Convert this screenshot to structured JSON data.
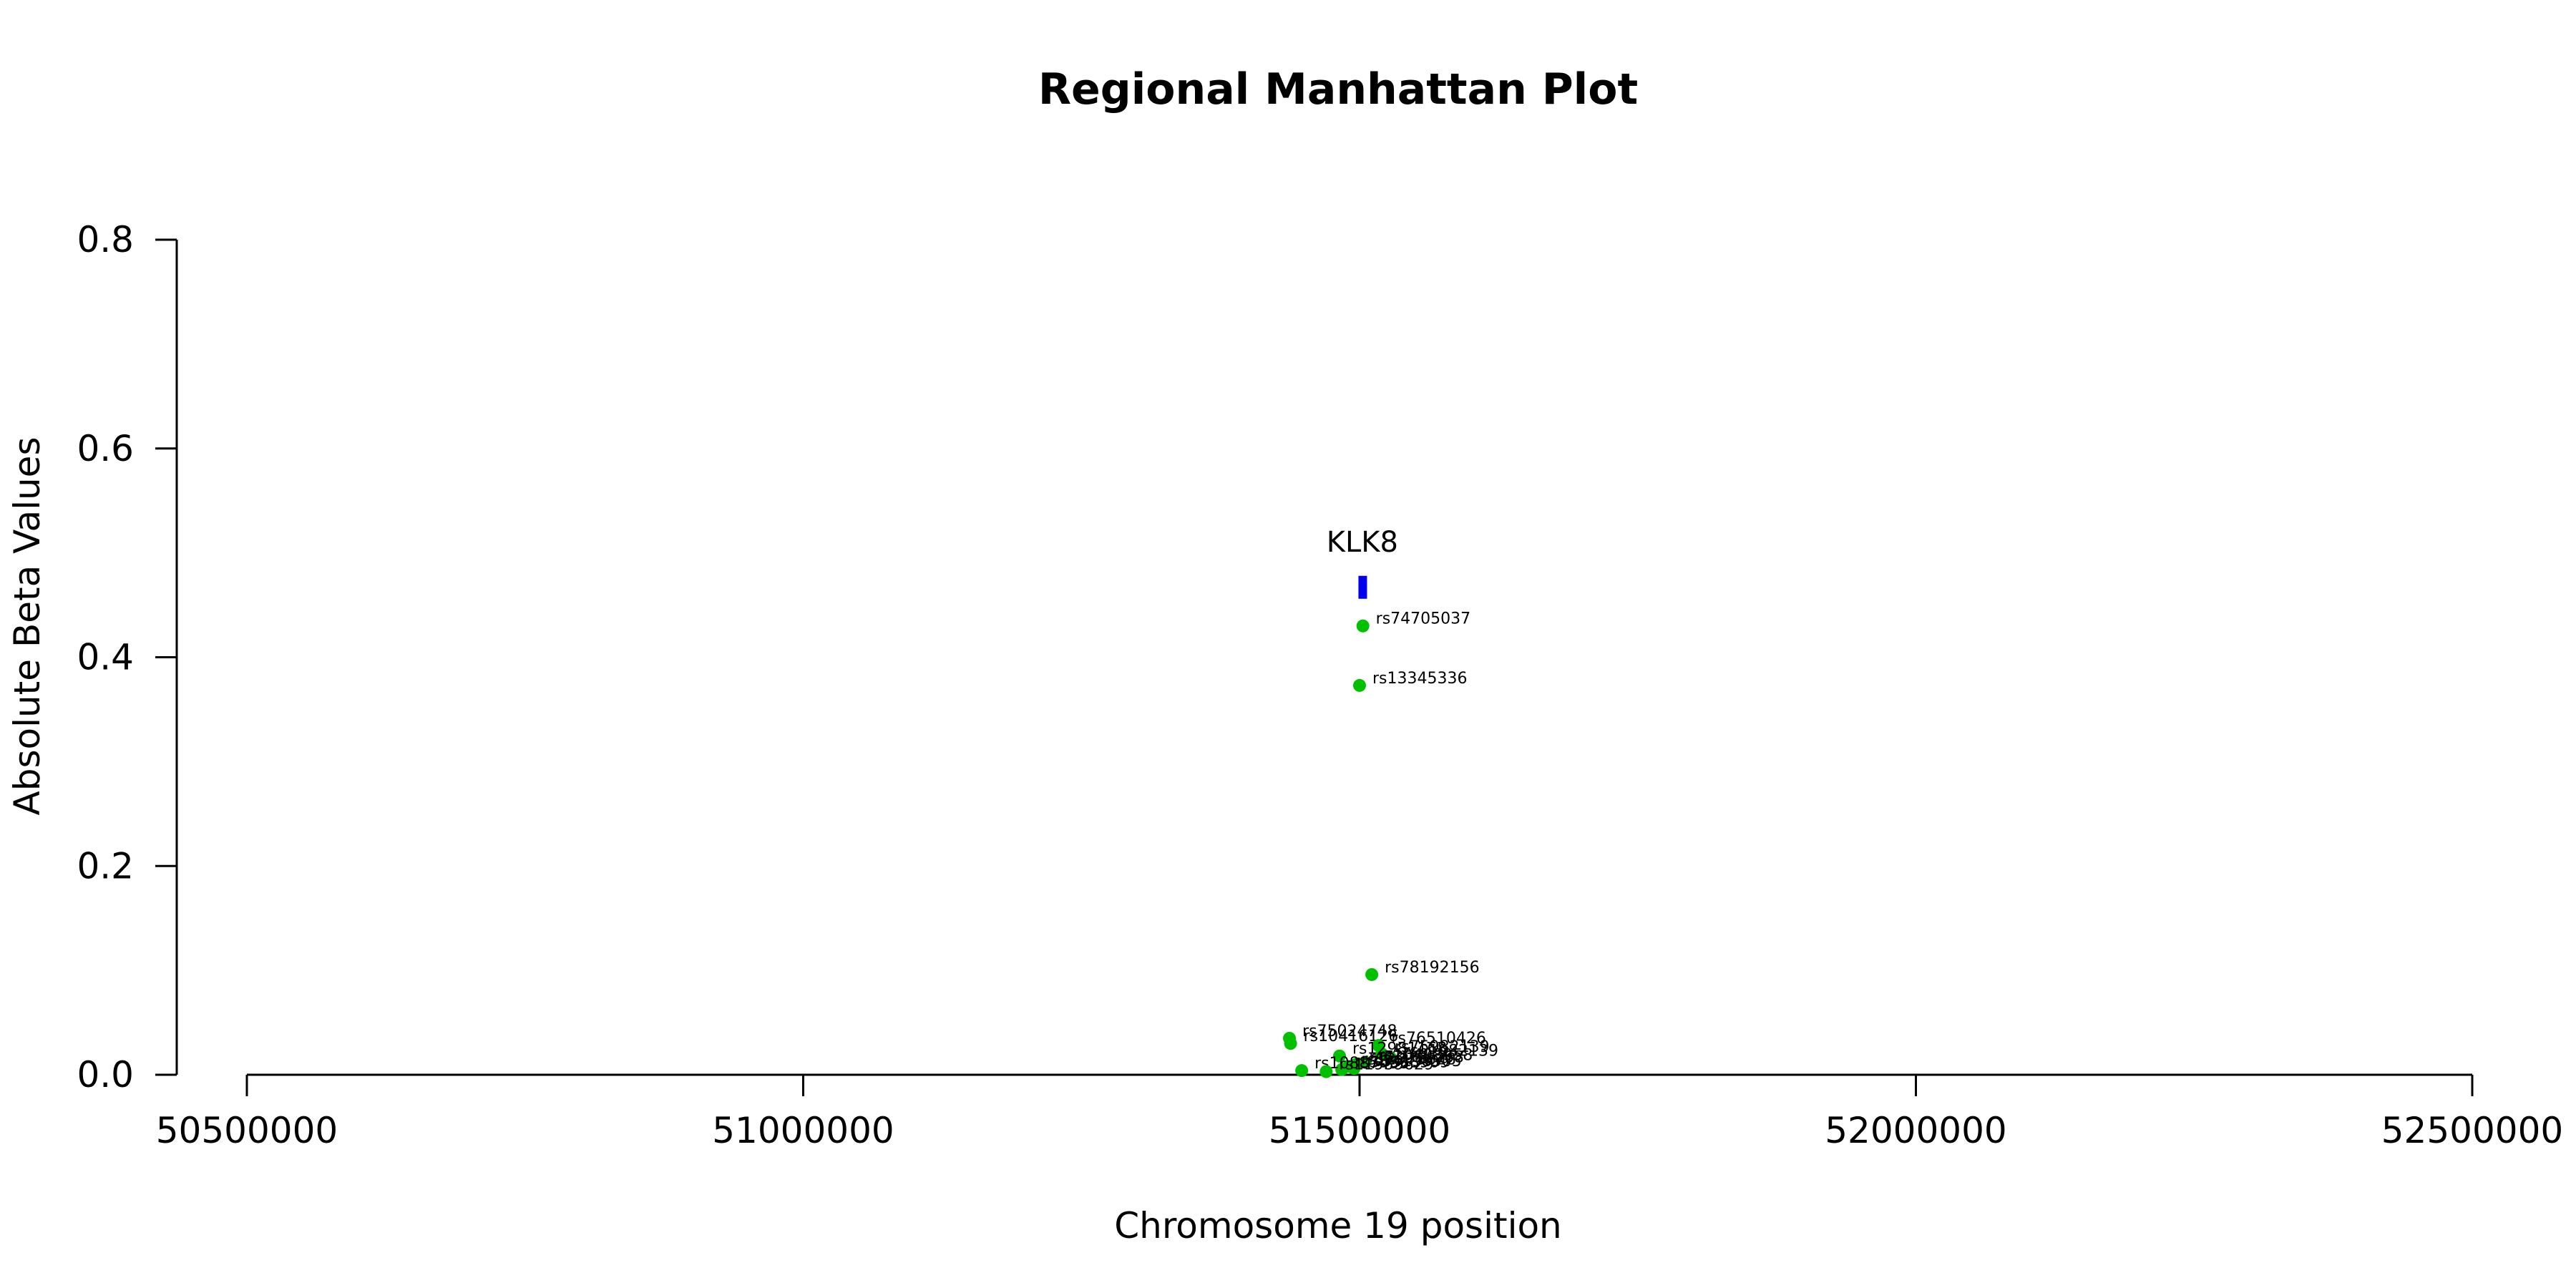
{
  "chart_data": {
    "type": "scatter",
    "title": "Regional Manhattan Plot",
    "xlabel": "Chromosome 19 position",
    "ylabel": "Absolute Beta Values",
    "xlim": [
      50500000,
      52500000
    ],
    "ylim": [
      0,
      0.8
    ],
    "x_ticks": [
      50500000,
      51000000,
      51500000,
      52000000,
      52500000
    ],
    "x_tick_labels": [
      "50500000",
      "51000000",
      "51500000",
      "52000000",
      "52500000"
    ],
    "y_ticks": [
      0.0,
      0.2,
      0.4,
      0.6,
      0.8
    ],
    "y_tick_labels": [
      "0.0",
      "0.2",
      "0.4",
      "0.6",
      "0.8"
    ],
    "grid": false,
    "point_color": "#00c000",
    "gene_color": "#0000ee",
    "gene": {
      "name": "KLK8",
      "start": 51499000,
      "end": 51506000,
      "y": 0.467
    },
    "points": [
      {
        "label": "rs74705037",
        "x": 51503000,
        "y": 0.43
      },
      {
        "label": "rs13345336",
        "x": 51500000,
        "y": 0.373
      },
      {
        "label": "rs78192156",
        "x": 51511000,
        "y": 0.096
      },
      {
        "label": "rs75024748",
        "x": 51437000,
        "y": 0.035
      },
      {
        "label": "rs10416126",
        "x": 51438000,
        "y": 0.03
      },
      {
        "label": "rs76510426",
        "x": 51517000,
        "y": 0.028
      },
      {
        "label": "rs75982139",
        "x": 51520000,
        "y": 0.02
      },
      {
        "label": "rs12981168",
        "x": 51482000,
        "y": 0.018
      },
      {
        "label": "rs61982139",
        "x": 51528000,
        "y": 0.016
      },
      {
        "label": "rs10408958",
        "x": 51505000,
        "y": 0.012
      },
      {
        "label": "rs73054268",
        "x": 51497000,
        "y": 0.01
      },
      {
        "label": "rs12975628",
        "x": 51490000,
        "y": 0.008
      },
      {
        "label": "rs34198505",
        "x": 51495000,
        "y": 0.006
      },
      {
        "label": "rs35568909",
        "x": 51484000,
        "y": 0.005
      },
      {
        "label": "rs10887453",
        "x": 51448000,
        "y": 0.004
      },
      {
        "label": "rs11939629",
        "x": 51470000,
        "y": 0.003
      }
    ]
  }
}
